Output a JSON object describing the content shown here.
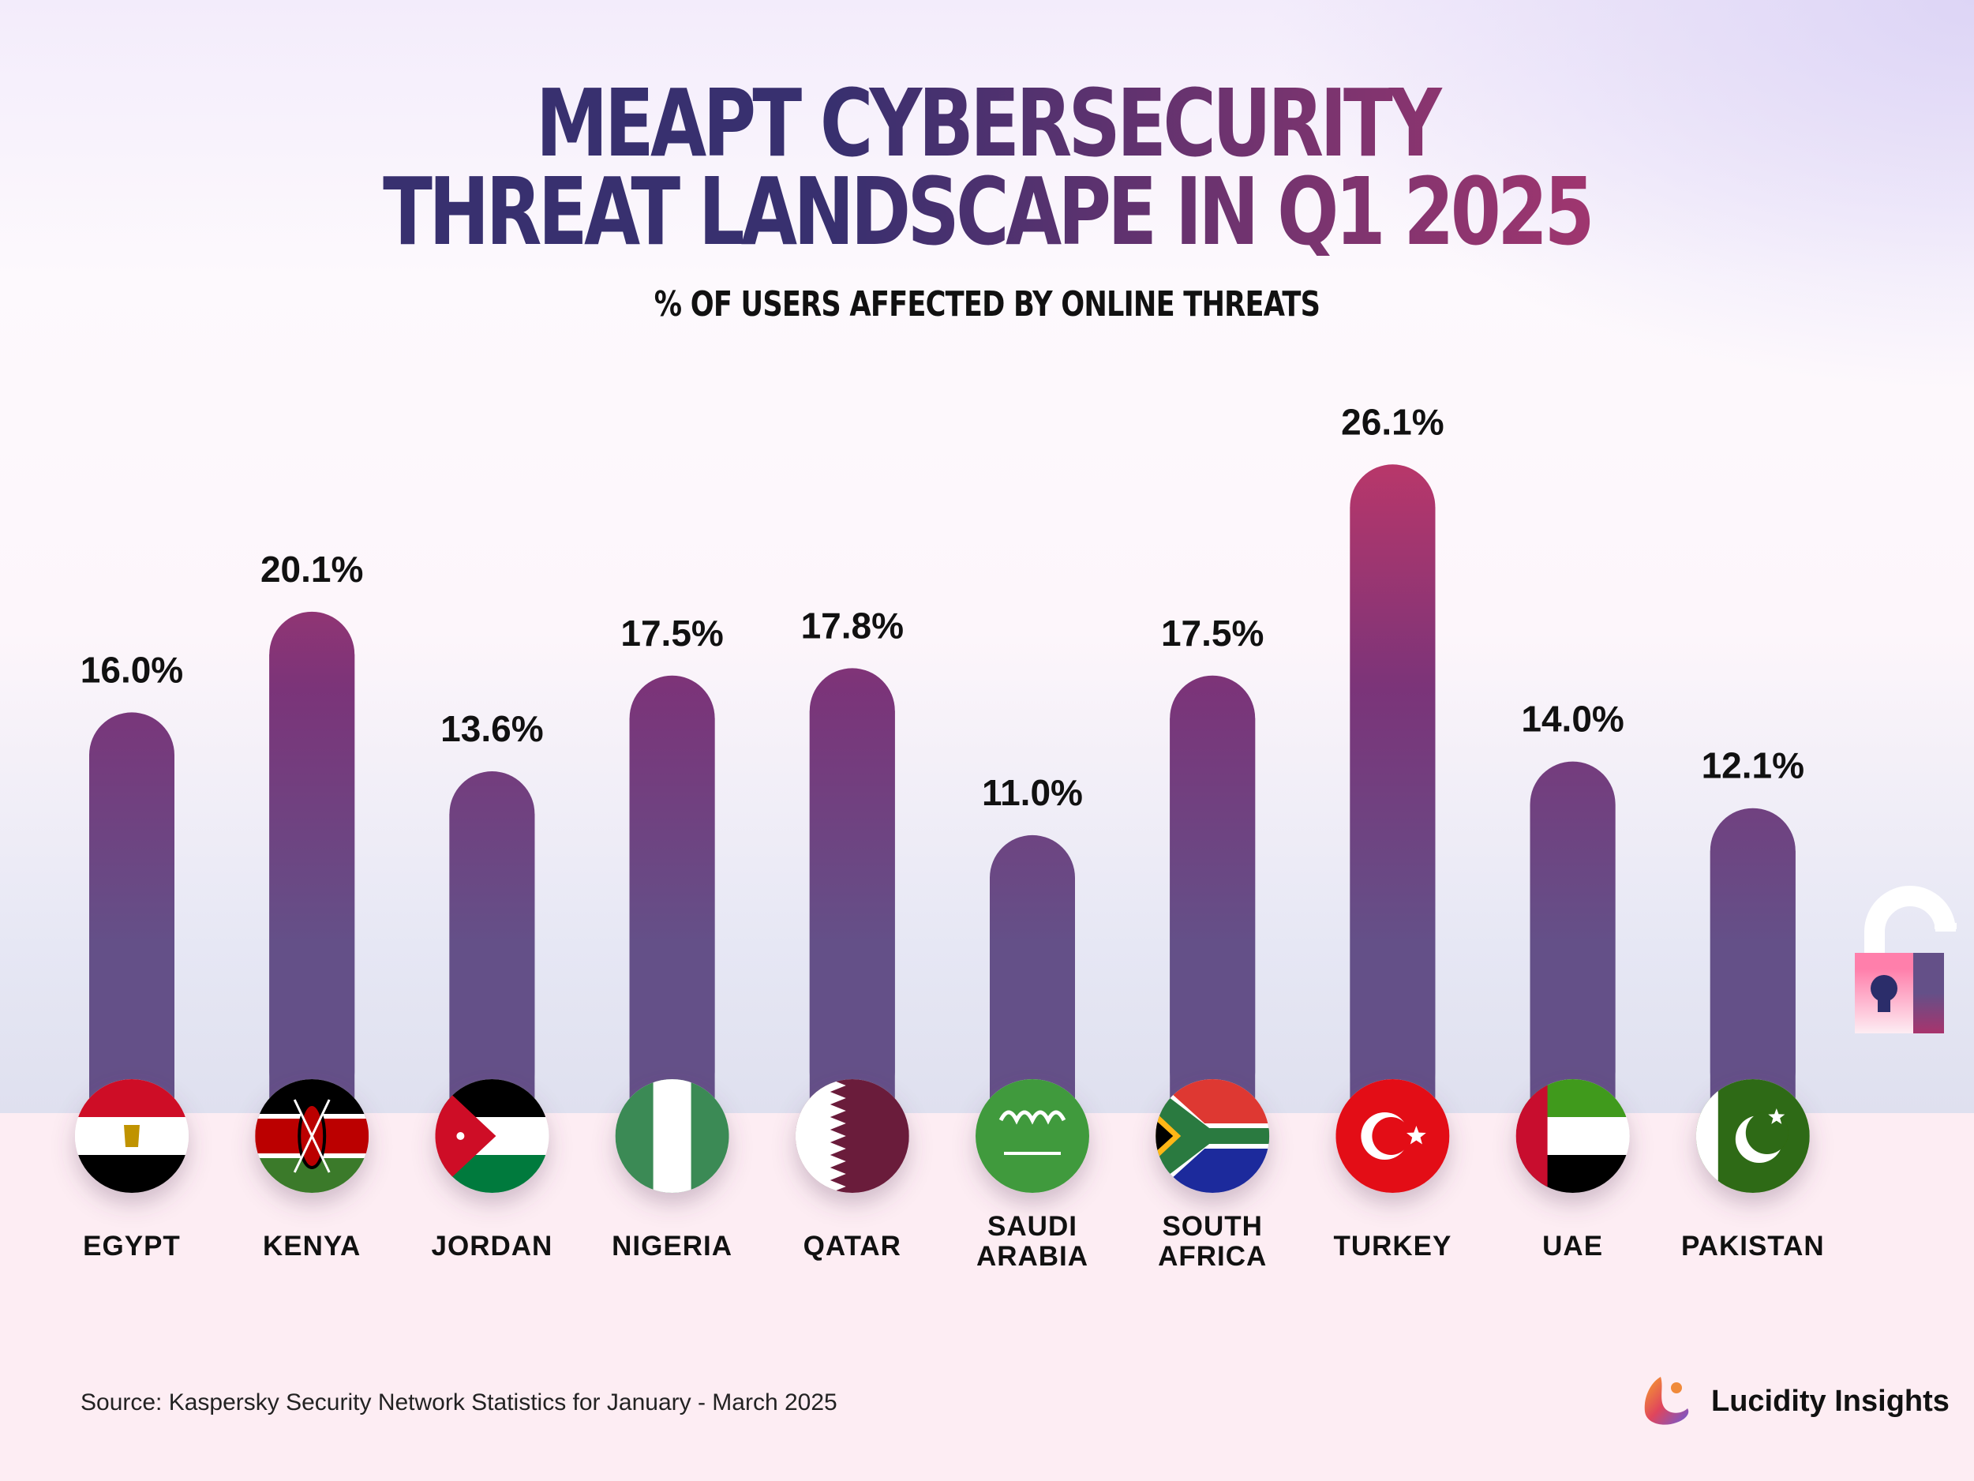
{
  "title_line1": "MEAPT CYBERSECURITY",
  "title_line2": "THREAT LANDSCAPE IN Q1 2025",
  "subtitle": "% OF USERS AFFECTED BY ONLINE THREATS",
  "source": "Source: Kaspersky Security Network Statistics for January - March 2025",
  "brand": "Lucidity Insights",
  "colors": {
    "bar_top": "#b8376a",
    "bar_mid": "#7b3479",
    "bar_bottom": "#645088",
    "title": "#38306f",
    "floor": "#fdedf3"
  },
  "chart_data": {
    "type": "bar",
    "title": "% OF USERS AFFECTED BY ONLINE THREATS",
    "categories": [
      "EGYPT",
      "KENYA",
      "JORDAN",
      "NIGERIA",
      "QATAR",
      "SAUDI ARABIA",
      "SOUTH AFRICA",
      "TURKEY",
      "UAE",
      "PAKISTAN"
    ],
    "category_lines": [
      [
        "EGYPT"
      ],
      [
        "KENYA"
      ],
      [
        "JORDAN"
      ],
      [
        "NIGERIA"
      ],
      [
        "QATAR"
      ],
      [
        "SAUDI",
        "ARABIA"
      ],
      [
        "SOUTH",
        "AFRICA"
      ],
      [
        "TURKEY"
      ],
      [
        "UAE"
      ],
      [
        "PAKISTAN"
      ]
    ],
    "values": [
      16.0,
      20.1,
      13.6,
      17.5,
      17.8,
      11.0,
      17.5,
      26.1,
      14.0,
      12.1
    ],
    "labels": [
      "16.0%",
      "20.1%",
      "13.6%",
      "17.5%",
      "17.8%",
      "11.0%",
      "17.5%",
      "26.1%",
      "14.0%",
      "12.1%"
    ],
    "flags": [
      "egypt-flag",
      "kenya-flag",
      "jordan-flag",
      "nigeria-flag",
      "qatar-flag",
      "saudi-arabia-flag",
      "south-africa-flag",
      "turkey-flag",
      "uae-flag",
      "pakistan-flag"
    ],
    "unit": "%",
    "grid": false,
    "legend": "none"
  }
}
